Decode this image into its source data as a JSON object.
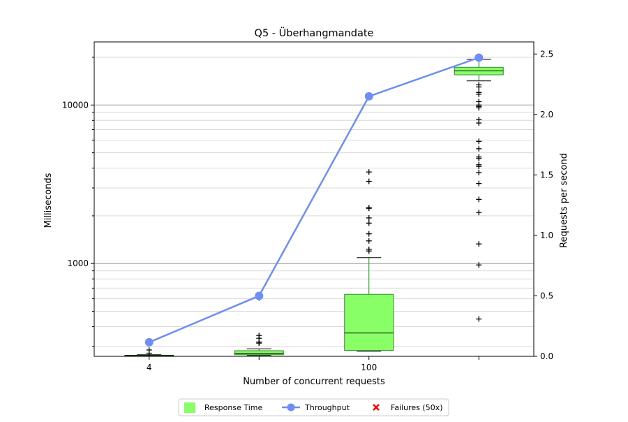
{
  "chart_data": {
    "type": "box",
    "title": "Q5 - Überhangmandate",
    "xlabel": "Number of concurrent requests",
    "ylabel": "Milliseconds",
    "y2label": "Requests per second",
    "y_scale": "log",
    "ylim": [
      260,
      25000
    ],
    "y2lim": [
      0,
      2.6
    ],
    "grid": true,
    "legend_position": "bottom-center",
    "x_tick_labels": [
      "4",
      "",
      "100",
      ""
    ],
    "y_tick_labels": [
      "1000",
      "10000"
    ],
    "y2_tick_labels": [
      "0.0",
      "0.5",
      "1.0",
      "1.5",
      "2.0",
      "2.5"
    ],
    "box_color": "#88ff66",
    "box_edge_color": "#2e8b2e",
    "throughput_color": "#6f8ef5",
    "failure_color": "#ff0000",
    "categories": [
      1,
      2,
      3,
      4
    ],
    "boxes": [
      {
        "q1": 262,
        "median": 263,
        "q3": 264,
        "whisker_low": 261,
        "whisker_high": 266,
        "fliers": [
          272,
          285
        ]
      },
      {
        "q1": 266,
        "median": 272,
        "q3": 282,
        "whisker_low": 264,
        "whisker_high": 290,
        "fliers": [
          315,
          320,
          338,
          352,
          608
        ]
      },
      {
        "q1": 283,
        "median": 365,
        "q3": 640,
        "whisker_low": 280,
        "whisker_high": 1090,
        "fliers": [
          1200,
          1230,
          1390,
          1540,
          1800,
          1940,
          2230,
          2250,
          3300,
          3780
        ]
      },
      {
        "q1": 15500,
        "median": 16400,
        "q3": 17300,
        "whisker_low": 14200,
        "whisker_high": 19400,
        "fliers": [
          447,
          980,
          1330,
          2100,
          2540,
          3200,
          3750,
          4100,
          4200,
          4600,
          4700,
          5300,
          5900,
          7700,
          8100,
          9600,
          9800,
          10000,
          10500,
          11700,
          12000,
          13000,
          13400
        ]
      }
    ],
    "throughput": [
      0.116,
      0.5,
      2.15,
      2.47
    ],
    "legend": {
      "response_time": "Response Time",
      "throughput": "Throughput",
      "failures": "Failures (50x)"
    }
  }
}
